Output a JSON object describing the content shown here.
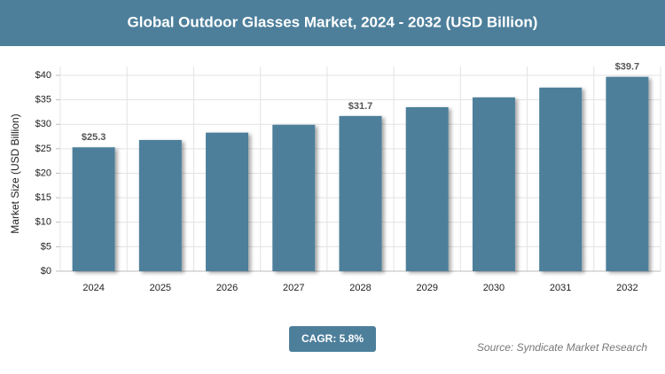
{
  "chart_data": {
    "type": "bar",
    "title": "Global Outdoor Glasses Market, 2024 - 2032 (USD Billion)",
    "y_label": "Market Size (USD Billion)",
    "categories": [
      "2024",
      "2025",
      "2026",
      "2027",
      "2028",
      "2029",
      "2030",
      "2031",
      "2032"
    ],
    "values": [
      25.3,
      26.8,
      28.3,
      29.9,
      31.7,
      33.5,
      35.5,
      37.5,
      39.7
    ],
    "value_labels": [
      "$25.3",
      null,
      null,
      null,
      "$31.7",
      null,
      null,
      null,
      "$39.7"
    ],
    "color": "#4d7f9b",
    "ylim": [
      0,
      40
    ],
    "yticks": [
      {
        "value": 0,
        "label": "$0"
      },
      {
        "value": 5,
        "label": "$5"
      },
      {
        "value": 10,
        "label": "$10"
      },
      {
        "value": 15,
        "label": "$15"
      },
      {
        "value": 20,
        "label": "$20"
      },
      {
        "value": 25,
        "label": "$25"
      },
      {
        "value": 30,
        "label": "$30"
      },
      {
        "value": 35,
        "label": "$35"
      },
      {
        "value": 40,
        "label": "$40"
      }
    ],
    "grid": true,
    "cagr_label": "CAGR: 5.8%",
    "source": "Source: Syndicate Market Research"
  }
}
